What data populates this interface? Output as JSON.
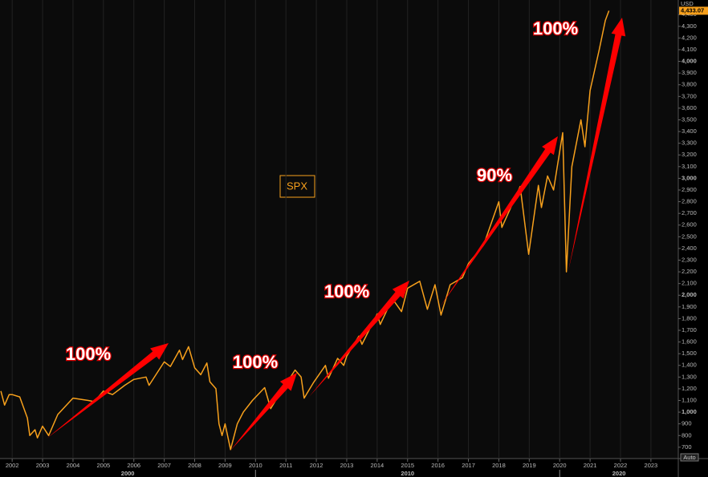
{
  "chart_data": {
    "type": "line",
    "series_label": "SPX",
    "currency": "USD",
    "auto_label": "Auto",
    "last_price_label": "4,433.07",
    "color": "#f7a01c",
    "grid": "x",
    "x": [
      2001.63,
      2001.75,
      2001.9,
      2002.0,
      2002.25,
      2002.5,
      2002.58,
      2002.75,
      2002.83,
      2003.0,
      2003.2,
      2003.5,
      2004.0,
      2004.5,
      2004.7,
      2005.0,
      2005.3,
      2005.7,
      2006.0,
      2006.4,
      2006.5,
      2007.0,
      2007.2,
      2007.5,
      2007.6,
      2007.8,
      2008.0,
      2008.2,
      2008.4,
      2008.5,
      2008.7,
      2008.8,
      2008.9,
      2009.0,
      2009.18,
      2009.4,
      2009.6,
      2009.9,
      2010.3,
      2010.5,
      2010.9,
      2011.3,
      2011.5,
      2011.6,
      2011.9,
      2012.3,
      2012.4,
      2012.7,
      2012.9,
      2013.0,
      2013.4,
      2013.5,
      2014.0,
      2014.1,
      2014.5,
      2014.8,
      2015.0,
      2015.4,
      2015.65,
      2015.9,
      2016.1,
      2016.4,
      2016.8,
      2017.0,
      2017.5,
      2018.0,
      2018.1,
      2018.7,
      2018.98,
      2019.3,
      2019.4,
      2019.6,
      2019.8,
      2020.1,
      2020.22,
      2020.4,
      2020.7,
      2020.83,
      2021.0,
      2021.3,
      2021.5,
      2021.62
    ],
    "values": [
      1180,
      1060,
      1150,
      1150,
      1130,
      950,
      800,
      850,
      780,
      880,
      800,
      980,
      1120,
      1100,
      1090,
      1180,
      1150,
      1230,
      1280,
      1300,
      1230,
      1430,
      1390,
      1530,
      1450,
      1560,
      1380,
      1320,
      1420,
      1260,
      1200,
      900,
      800,
      900,
      680,
      900,
      1000,
      1100,
      1210,
      1030,
      1200,
      1360,
      1300,
      1120,
      1250,
      1400,
      1290,
      1460,
      1400,
      1480,
      1650,
      1580,
      1840,
      1750,
      1970,
      1860,
      2060,
      2120,
      1880,
      2090,
      1830,
      2090,
      2150,
      2270,
      2430,
      2800,
      2580,
      2930,
      2350,
      2940,
      2750,
      3020,
      2900,
      3390,
      2200,
      3100,
      3500,
      3270,
      3750,
      4100,
      4350,
      4433.07
    ],
    "xlim": [
      2001.6,
      2023.9
    ],
    "xticks": [
      2002,
      2003,
      2004,
      2005,
      2006,
      2007,
      2008,
      2009,
      2010,
      2011,
      2012,
      2013,
      2014,
      2015,
      2016,
      2017,
      2018,
      2019,
      2020,
      2021,
      2022,
      2023
    ],
    "decades": [
      {
        "value": 2000,
        "label": "2000"
      },
      {
        "value": 2010,
        "label": "2010"
      },
      {
        "value": 2020,
        "label": "2020"
      }
    ],
    "ylim": [
      603,
      4525
    ],
    "yticks": [
      700,
      800,
      900,
      {
        "value": 1000,
        "label": "1,000"
      },
      {
        "value": 1100,
        "label": "1,100"
      },
      {
        "value": 1200,
        "label": "1,200"
      },
      {
        "value": 1300,
        "label": "1,300"
      },
      {
        "value": 1400,
        "label": "1,400"
      },
      {
        "value": 1500,
        "label": "1,500"
      },
      {
        "value": 1600,
        "label": "1,600"
      },
      {
        "value": 1700,
        "label": "1,700"
      },
      {
        "value": 1800,
        "label": "1,800"
      },
      {
        "value": 1900,
        "label": "1,900"
      },
      {
        "value": 2000,
        "label": "2,000"
      },
      {
        "value": 2100,
        "label": "2,100"
      },
      {
        "value": 2200,
        "label": "2,200"
      },
      {
        "value": 2300,
        "label": "2,300"
      },
      {
        "value": 2400,
        "label": "2,400"
      },
      {
        "value": 2500,
        "label": "2,500"
      },
      {
        "value": 2600,
        "label": "2,600"
      },
      {
        "value": 2700,
        "label": "2,700"
      },
      {
        "value": 2800,
        "label": "2,800"
      },
      {
        "value": 2900,
        "label": "2,900"
      },
      {
        "value": 3000,
        "label": "3,000"
      },
      {
        "value": 3100,
        "label": "3,100"
      },
      {
        "value": 3200,
        "label": "3,200"
      },
      {
        "value": 3300,
        "label": "3,300"
      },
      {
        "value": 3400,
        "label": "3,400"
      },
      {
        "value": 3500,
        "label": "3,500"
      },
      {
        "value": 3600,
        "label": "3,600"
      },
      {
        "value": 3700,
        "label": "3,700"
      },
      {
        "value": 3800,
        "label": "3,800"
      },
      {
        "value": 3900,
        "label": "3,900"
      },
      {
        "value": 4000,
        "label": "4,000"
      },
      {
        "value": 4100,
        "label": "4,100"
      },
      {
        "value": 4200,
        "label": "4,200"
      },
      {
        "value": 4300,
        "label": "4,300"
      },
      {
        "value": 4400,
        "label": "4,400"
      }
    ],
    "annotations": [
      "100%",
      "100%",
      "100%",
      "90%",
      "100%"
    ]
  }
}
